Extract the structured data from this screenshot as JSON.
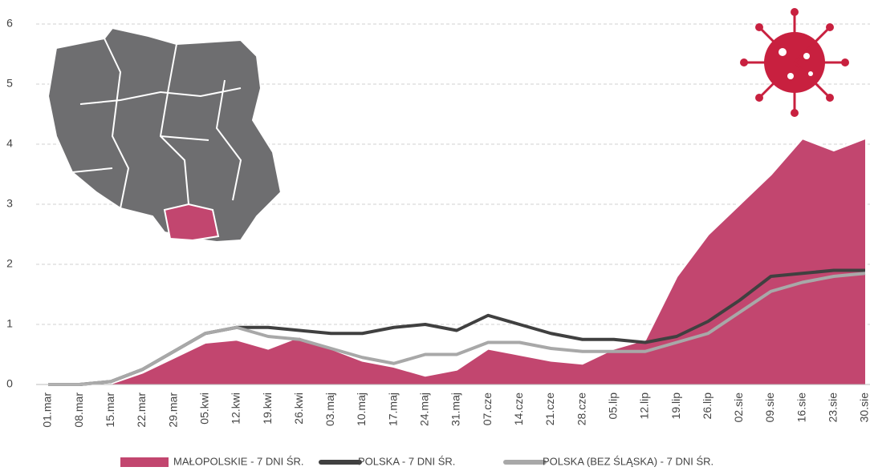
{
  "chart_data": {
    "type": "area",
    "categories": [
      "01.mar",
      "08.mar",
      "15.mar",
      "22.mar",
      "29.mar",
      "05.kwi",
      "12.kwi",
      "19.kwi",
      "26.kwi",
      "03.maj",
      "10.maj",
      "17.maj",
      "24.maj",
      "31.maj",
      "07.cze",
      "14.cze",
      "21.cze",
      "28.cze",
      "05.lip",
      "12.lip",
      "19.lip",
      "26.lip",
      "02.sie",
      "09.sie",
      "16.sie",
      "23.sie",
      "30.sie"
    ],
    "series": [
      {
        "name": "MAŁOPOLSKIE - 7 DNI ŚR.",
        "type": "area",
        "color": "#c2466f",
        "values": [
          0,
          0,
          0.02,
          0.2,
          0.45,
          0.7,
          0.75,
          0.6,
          0.8,
          0.6,
          0.4,
          0.3,
          0.15,
          0.25,
          0.6,
          0.5,
          0.4,
          0.35,
          0.6,
          0.75,
          1.8,
          2.5,
          3.0,
          3.5,
          4.1,
          3.9,
          4.1
        ]
      },
      {
        "name": "POLSKA - 7 DNI ŚR.",
        "type": "line",
        "color": "#404040",
        "values": [
          0,
          0,
          0.05,
          0.25,
          0.55,
          0.85,
          0.95,
          0.95,
          0.9,
          0.85,
          0.85,
          0.95,
          1.0,
          0.9,
          1.15,
          1.0,
          0.85,
          0.75,
          0.75,
          0.7,
          0.8,
          1.05,
          1.4,
          1.8,
          1.85,
          1.9,
          1.9
        ]
      },
      {
        "name": "POLSKA (BEZ ŚLĄSKA) - 7 DNI ŚR.",
        "type": "line",
        "color": "#a8a8a8",
        "values": [
          0,
          0,
          0.05,
          0.25,
          0.55,
          0.85,
          0.95,
          0.8,
          0.75,
          0.6,
          0.45,
          0.35,
          0.5,
          0.5,
          0.7,
          0.7,
          0.6,
          0.55,
          0.55,
          0.55,
          0.7,
          0.85,
          1.2,
          1.55,
          1.7,
          1.8,
          1.85
        ]
      }
    ],
    "ylim": [
      0,
      6
    ],
    "yticks": [
      0,
      1,
      2,
      3,
      4,
      5,
      6
    ],
    "grid": true
  }
}
